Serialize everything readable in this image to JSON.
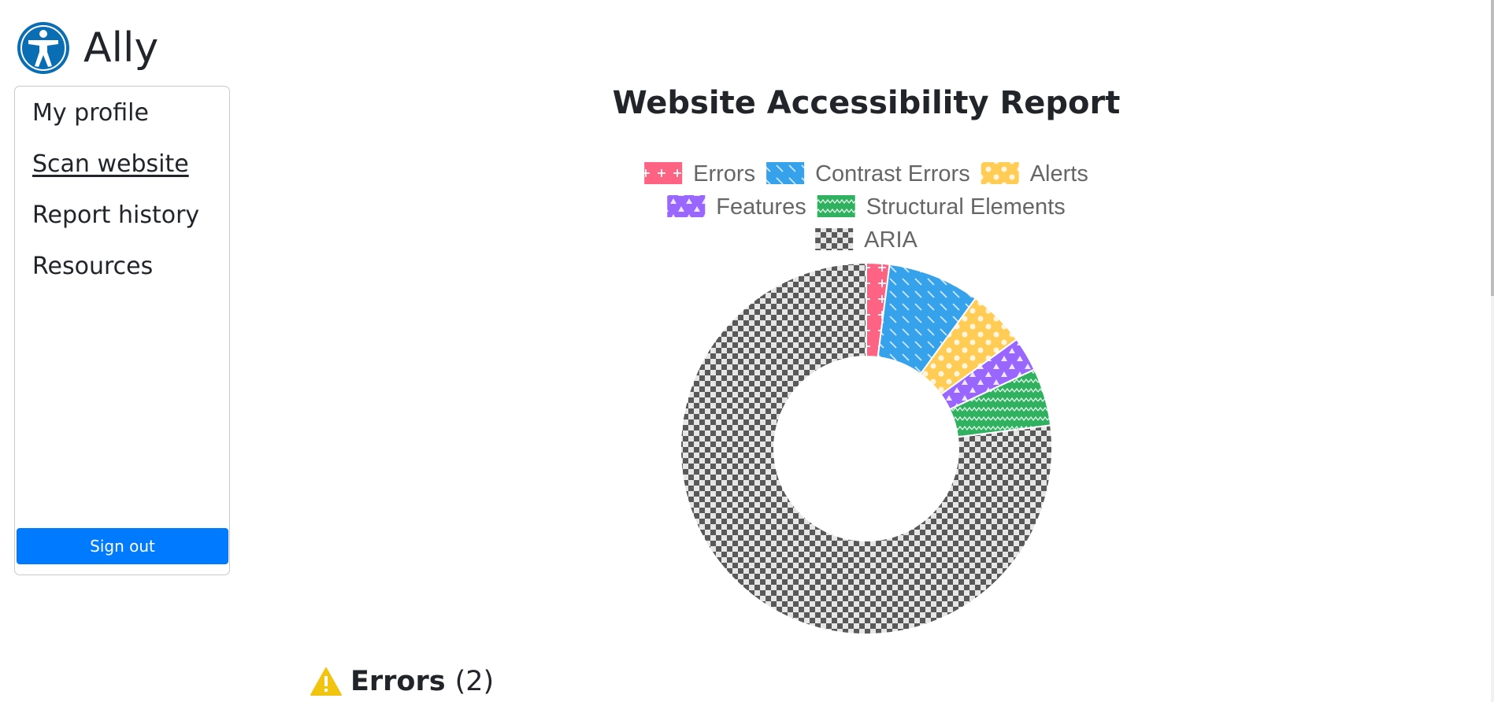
{
  "brand": {
    "title": "Ally",
    "logo_icon": "accessibility-person-icon",
    "logo_color": "#0a6eb4"
  },
  "sidebar": {
    "items": [
      {
        "label": "My profile",
        "active": false
      },
      {
        "label": "Scan website",
        "active": true
      },
      {
        "label": "Report history",
        "active": false
      },
      {
        "label": "Resources",
        "active": false
      }
    ],
    "signout_label": "Sign out",
    "signout_color": "#007bff"
  },
  "report": {
    "title": "Website Accessibility Report"
  },
  "chart_data": {
    "type": "pie",
    "variant": "doughnut",
    "categories": [
      "Errors",
      "Contrast Errors",
      "Alerts",
      "Features",
      "Structural Elements",
      "ARIA"
    ],
    "values": [
      2,
      8,
      5,
      3,
      5,
      77
    ],
    "colors": [
      "#ff6384",
      "#36a2eb",
      "#ffcd56",
      "#9966ff",
      "#2fb15f",
      "#595959"
    ],
    "patterns": [
      "plus",
      "diagonal",
      "dots",
      "triangles",
      "zigzag",
      "checker"
    ],
    "legend_position": "top"
  },
  "section": {
    "icon": "warning-icon",
    "title": "Errors",
    "count": "(2)"
  }
}
